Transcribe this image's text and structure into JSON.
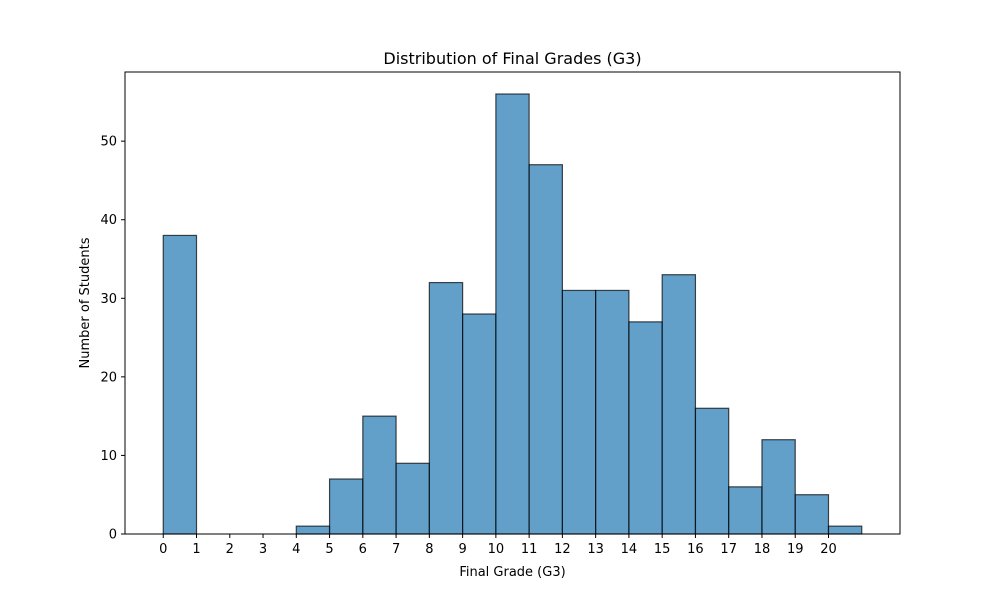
{
  "chart_data": {
    "type": "bar",
    "title": "Distribution of Final Grades (G3)",
    "xlabel": "Final Grade (G3)",
    "ylabel": "Number of Students",
    "bins": [
      {
        "start": 0,
        "end": 1,
        "count": 38
      },
      {
        "start": 1,
        "end": 2,
        "count": 0
      },
      {
        "start": 2,
        "end": 3,
        "count": 0
      },
      {
        "start": 3,
        "end": 4,
        "count": 0
      },
      {
        "start": 4,
        "end": 5,
        "count": 1
      },
      {
        "start": 5,
        "end": 6,
        "count": 7
      },
      {
        "start": 6,
        "end": 7,
        "count": 15
      },
      {
        "start": 7,
        "end": 8,
        "count": 9
      },
      {
        "start": 8,
        "end": 9,
        "count": 32
      },
      {
        "start": 9,
        "end": 10,
        "count": 28
      },
      {
        "start": 10,
        "end": 11,
        "count": 56
      },
      {
        "start": 11,
        "end": 12,
        "count": 47
      },
      {
        "start": 12,
        "end": 13,
        "count": 31
      },
      {
        "start": 13,
        "end": 14,
        "count": 31
      },
      {
        "start": 14,
        "end": 15,
        "count": 27
      },
      {
        "start": 15,
        "end": 16,
        "count": 33
      },
      {
        "start": 16,
        "end": 17,
        "count": 16
      },
      {
        "start": 17,
        "end": 18,
        "count": 6
      },
      {
        "start": 18,
        "end": 19,
        "count": 12
      },
      {
        "start": 19,
        "end": 20,
        "count": 5
      },
      {
        "start": 20,
        "end": 21,
        "count": 1
      }
    ],
    "xticks": [
      "0",
      "1",
      "2",
      "3",
      "4",
      "5",
      "6",
      "7",
      "8",
      "9",
      "10",
      "11",
      "12",
      "13",
      "14",
      "15",
      "16",
      "17",
      "18",
      "19",
      "20"
    ],
    "yticks": [
      "0",
      "10",
      "20",
      "30",
      "40",
      "50"
    ],
    "xlim": [
      -1.15,
      22.15
    ],
    "ylim": [
      0,
      58.8
    ],
    "colors": {
      "bar_fill": "#1f77b4",
      "bar_opacity": 0.7,
      "bar_edge": "#000000"
    }
  }
}
